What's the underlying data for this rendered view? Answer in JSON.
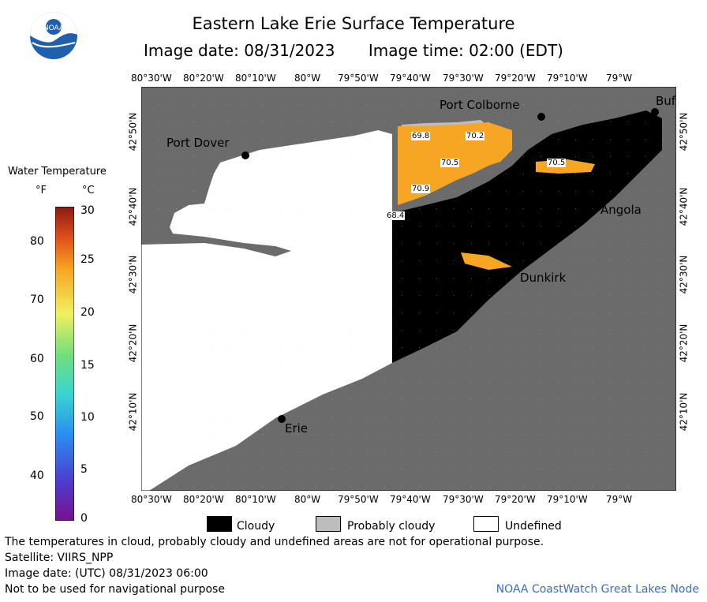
{
  "header": {
    "title": "Eastern Lake Erie Surface Temperature",
    "image_date": "Image date: 08/31/2023",
    "image_time": "Image time: 02:00 (EDT)",
    "logo_text": "NOAA"
  },
  "axes": {
    "lon_labels": [
      "80°30'W",
      "80°20'W",
      "80°10'W",
      "80°W",
      "79°50'W",
      "79°40'W",
      "79°30'W",
      "79°20'W",
      "79°10'W",
      "79°W"
    ],
    "lat_labels": [
      "42°50'N",
      "42°40'N",
      "42°30'N",
      "42°20'N",
      "42°10'N"
    ]
  },
  "places": {
    "port_dover": "Port Dover",
    "port_colborne": "Port Colborne",
    "buffalo": "Buf",
    "angola": "Angola",
    "dunkirk": "Dunkirk",
    "erie": "Erie"
  },
  "readings": [
    "69.8",
    "70.2",
    "70.5",
    "70.5",
    "70.9",
    "68.4"
  ],
  "legend": {
    "title": "Water Temperature",
    "unit_f": "°F",
    "unit_c": "°C",
    "f_ticks": [
      "80",
      "70",
      "60",
      "50",
      "40"
    ],
    "c_ticks": [
      "30",
      "25",
      "20",
      "15",
      "10",
      "5",
      "0"
    ]
  },
  "key": {
    "cloudy": "Cloudy",
    "probably_cloudy": "Probably cloudy",
    "undefined": "Undefined"
  },
  "footer": {
    "disclaimer": "The temperatures in cloud, probably cloudy and undefined areas are not for operational purpose.",
    "satellite": "Satellite: VIIRS_NPP",
    "utc_date": "Image date: (UTC) 08/31/2023  06:00",
    "nav": "Not to be used for navigational purpose",
    "credit": "NOAA CoastWatch Great Lakes Node"
  },
  "colors": {
    "land": "#6b6b6b",
    "cloud": "#000000",
    "probably_cloudy": "#bdbdbd",
    "undefined": "#ffffff",
    "warm_water": "#f6a623",
    "credit_blue": "#3b6fbf"
  }
}
